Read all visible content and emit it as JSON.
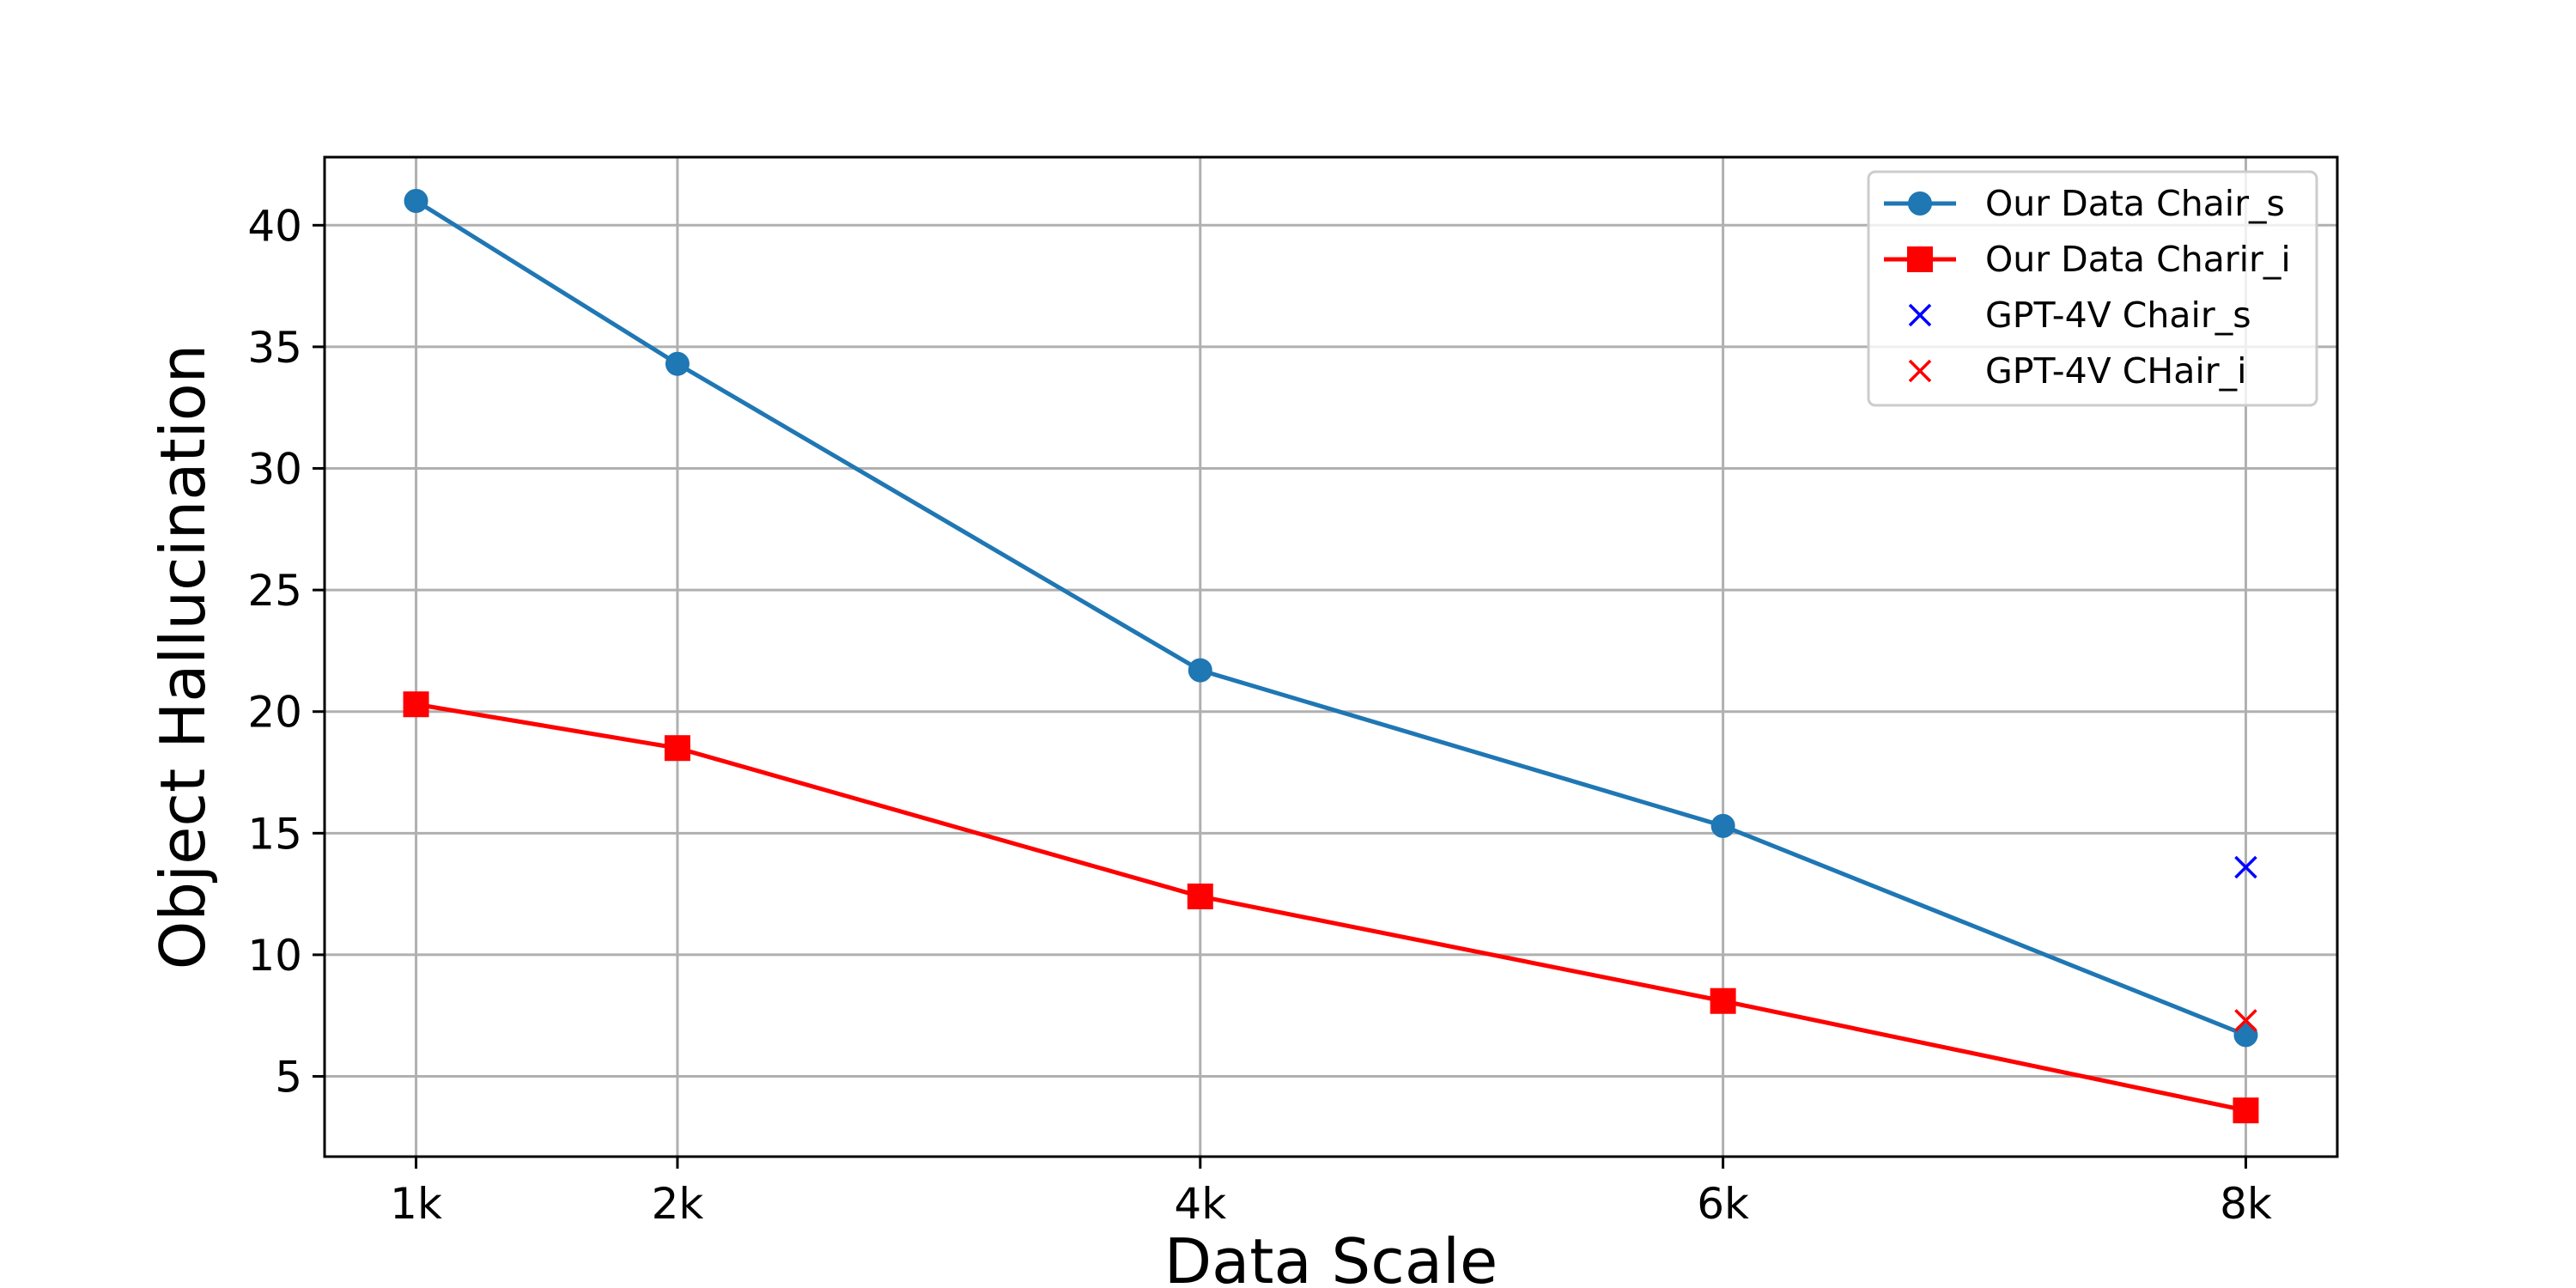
{
  "chart_data": {
    "type": "line",
    "title": "",
    "xlabel": "Data Scale",
    "ylabel": "Object Hallucination",
    "x_categories": [
      "1k",
      "2k",
      "4k",
      "6k",
      "8k"
    ],
    "x": [
      1,
      2,
      4,
      6,
      8
    ],
    "xlim": [
      0.65,
      8.35
    ],
    "ylim": [
      1.7,
      42.8
    ],
    "yticks": [
      5,
      10,
      15,
      20,
      25,
      30,
      35,
      40
    ],
    "grid": true,
    "legend_position": "top-right",
    "series": [
      {
        "name": "Our Data Chair_s",
        "type": "line",
        "marker": "circle",
        "color": "#1f77b4",
        "x": [
          1,
          2,
          4,
          6,
          8
        ],
        "values": [
          41.0,
          34.3,
          21.7,
          15.3,
          6.7
        ]
      },
      {
        "name": "Our Data Charir_i",
        "type": "line",
        "marker": "square",
        "color": "#ff0000",
        "x": [
          1,
          2,
          4,
          6,
          8
        ],
        "values": [
          20.3,
          18.5,
          12.4,
          8.1,
          3.6
        ]
      },
      {
        "name": "GPT-4V Chair_s",
        "type": "scatter",
        "marker": "x",
        "color": "#0000ff",
        "x": [
          8
        ],
        "values": [
          13.6
        ]
      },
      {
        "name": "GPT-4V CHair_i",
        "type": "scatter",
        "marker": "x",
        "color": "#ff0000",
        "x": [
          8
        ],
        "values": [
          7.3
        ]
      }
    ]
  }
}
